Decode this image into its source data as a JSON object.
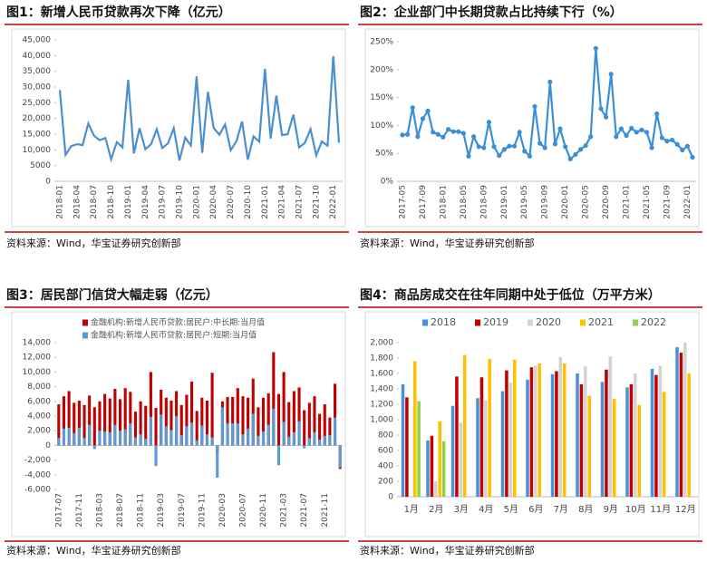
{
  "chart_data": [
    {
      "type": "line",
      "title": "图1：新增人民币贷款再次下降（亿元）",
      "source": "资料来源：Wind，华宝证券研究创新部",
      "color": "#4a90d0",
      "markers": false,
      "categories": [
        "2018-01",
        null,
        null,
        "2018-04",
        null,
        null,
        "2018-07",
        null,
        null,
        "2018-10",
        null,
        null,
        "2019-01",
        null,
        null,
        "2019-04",
        null,
        null,
        "2019-07",
        null,
        null,
        "2019-10",
        null,
        null,
        "2020-01",
        null,
        null,
        "2020-04",
        null,
        null,
        "2020-07",
        null,
        null,
        "2020-10",
        null,
        null,
        "2021-01",
        null,
        null,
        "2021-04",
        null,
        null,
        "2021-07",
        null,
        null,
        "2021-10",
        null,
        null,
        "2022-01",
        null
      ],
      "values": [
        29000,
        8400,
        11200,
        11800,
        11500,
        18400,
        14500,
        13100,
        13800,
        6970,
        12500,
        10800,
        32300,
        8860,
        16900,
        10200,
        11800,
        16600,
        10600,
        12100,
        16900,
        6613,
        13900,
        11400,
        33400,
        9057,
        28500,
        17000,
        14800,
        18100,
        9927,
        12800,
        19000,
        6898,
        14300,
        12600,
        35800,
        13600,
        27300,
        14700,
        15000,
        21200,
        10800,
        12200,
        16600,
        8262,
        12700,
        11300,
        39800,
        12300
      ],
      "ylim": [
        0,
        45000
      ],
      "yticks": [
        0,
        5000,
        {
          "value": 10000,
          "label": "10,000"
        },
        {
          "value": 15000,
          "label": "15,000"
        },
        {
          "value": 20000,
          "label": "20,000"
        },
        {
          "value": 25000,
          "label": "25,000"
        },
        {
          "value": 30000,
          "label": "30,000"
        },
        {
          "value": 35000,
          "label": "35,000"
        },
        {
          "value": 40000,
          "label": "40,000"
        },
        {
          "value": 45000,
          "label": "45,000"
        }
      ]
    },
    {
      "type": "line",
      "title": "图2：企业部门中长期贷款占比持续下行（%）",
      "source": "资料来源：Wind，华宝证券研究创新部",
      "color": "#3a8fd6",
      "markers": true,
      "categories": [
        "2017-05",
        null,
        null,
        null,
        "2017-09",
        null,
        null,
        null,
        "2018-01",
        null,
        null,
        null,
        "2018-05",
        null,
        null,
        null,
        "2018-09",
        null,
        null,
        null,
        "2019-01",
        null,
        null,
        null,
        "2019-05",
        null,
        null,
        null,
        "2019-09",
        null,
        null,
        null,
        "2020-01",
        null,
        null,
        null,
        "2020-05",
        null,
        null,
        null,
        "2020-09",
        null,
        null,
        null,
        "2021-01",
        null,
        null,
        null,
        "2021-05",
        null,
        null,
        null,
        "2021-09",
        null,
        null,
        null,
        "2022-01",
        null
      ],
      "values": [
        83,
        84,
        132,
        80,
        112,
        126,
        88,
        84,
        79,
        93,
        89,
        89,
        86,
        45,
        80,
        62,
        60,
        106,
        62,
        46,
        57,
        63,
        63,
        88,
        54,
        45,
        134,
        68,
        60,
        178,
        67,
        94,
        62,
        40,
        48,
        57,
        64,
        80,
        238,
        130,
        115,
        192,
        80,
        94,
        82,
        95,
        88,
        92,
        88,
        60,
        121,
        78,
        72,
        74,
        66,
        56,
        63,
        43
      ],
      "ylim": [
        0,
        250
      ],
      "yticks": [
        {
          "value": 0,
          "label": "0%"
        },
        {
          "value": 50,
          "label": "50%"
        },
        {
          "value": 100,
          "label": "100%"
        },
        {
          "value": 150,
          "label": "150%"
        },
        {
          "value": 200,
          "label": "200%"
        },
        {
          "value": 250,
          "label": "250%"
        }
      ]
    },
    {
      "type": "bar",
      "bar_mode": "overlap",
      "title": "图3：居民部门信贷大幅走弱（亿元）",
      "source": "资料来源：Wind，华宝证券研究创新部",
      "legend": "top-left",
      "categories": [
        "2017-07",
        null,
        null,
        null,
        "2017-11",
        null,
        null,
        null,
        "2018-03",
        null,
        null,
        null,
        "2018-07",
        null,
        null,
        null,
        "2018-11",
        null,
        null,
        null,
        "2019-03",
        null,
        null,
        null,
        "2019-07",
        null,
        null,
        null,
        "2019-11",
        null,
        null,
        null,
        "2020-03",
        null,
        null,
        null,
        "2020-07",
        null,
        null,
        null,
        "2020-11",
        null,
        null,
        null,
        "2021-03",
        null,
        null,
        null,
        "2021-07",
        null,
        null,
        null,
        "2021-11",
        null,
        null,
        null
      ],
      "series": [
        {
          "name": "金融机构:新增人民币贷款:居民户:中长期:当月值",
          "color": "#c00000",
          "values": [
            5600,
            6700,
            7400,
            5800,
            6100,
            5500,
            6800,
            5200,
            6000,
            7000,
            6400,
            7700,
            6300,
            7800,
            7300,
            4600,
            6000,
            5400,
            10000,
            5100,
            7600,
            6500,
            6100,
            7400,
            5500,
            6900,
            8700,
            4700,
            6500,
            6100,
            9900,
            -1000,
            6000,
            6600,
            6600,
            7800,
            6700,
            6500,
            9100,
            5200,
            6500,
            7100,
            12700,
            7000,
            10000,
            5900,
            7400,
            7900,
            4800,
            5800,
            6700,
            4300,
            5600,
            3800,
            8400,
            -3200
          ]
        },
        {
          "name": "金融机构:新增人民币贷款:居民户:短期:当月值",
          "color": "#5b9bd5",
          "values": [
            1000,
            2300,
            2400,
            1700,
            2400,
            1000,
            2800,
            -500,
            2000,
            1900,
            1800,
            2800,
            2000,
            2200,
            3000,
            1100,
            1500,
            900,
            3900,
            -2800,
            4200,
            2600,
            2100,
            4000,
            1400,
            2600,
            3100,
            700,
            2700,
            1500,
            1100,
            -4400,
            5200,
            3000,
            3000,
            3000,
            1500,
            2300,
            4300,
            1300,
            1900,
            2800,
            5000,
            -2700,
            3200,
            1200,
            1800,
            3300,
            -400,
            1000,
            1800,
            800,
            1300,
            1400,
            3800,
            -3000
          ]
        }
      ],
      "ylim": [
        -6000,
        14000
      ],
      "yticks": [
        {
          "value": -6000,
          "label": "-6,000"
        },
        {
          "value": -4000,
          "label": "-4,000"
        },
        {
          "value": -2000,
          "label": "-2,000"
        },
        0,
        {
          "value": 2000,
          "label": "2,000"
        },
        {
          "value": 4000,
          "label": "4,000"
        },
        {
          "value": 6000,
          "label": "6,000"
        },
        {
          "value": 8000,
          "label": "8,000"
        },
        {
          "value": 10000,
          "label": "10,000"
        },
        {
          "value": 12000,
          "label": "12,000"
        },
        {
          "value": 14000,
          "label": "14,000"
        }
      ]
    },
    {
      "type": "bar",
      "bar_mode": "grouped",
      "title": "图4：商品房成交在往年同期中处于低位（万平方米）",
      "source": "资料来源：Wind，华宝证券研究创新部",
      "legend": "top",
      "categories": [
        "1月",
        "2月",
        "3月",
        "4月",
        "5月",
        "6月",
        "7月",
        "8月",
        "9月",
        "10月",
        "11月",
        "12月"
      ],
      "series": [
        {
          "name": "2018",
          "color": "#4a90d9",
          "values": [
            1460,
            730,
            1180,
            1280,
            1370,
            1520,
            1590,
            1600,
            1490,
            1420,
            1660,
            1940
          ]
        },
        {
          "name": "2019",
          "color": "#c00000",
          "values": [
            1290,
            790,
            1560,
            1550,
            1640,
            1680,
            1630,
            1460,
            1650,
            1460,
            1580,
            1870
          ]
        },
        {
          "name": "2020",
          "color": "#d3d3d3",
          "values": [
            null,
            200,
            960,
            1250,
            1480,
            1700,
            1810,
            1690,
            1820,
            1600,
            1700,
            2000
          ]
        },
        {
          "name": "2021",
          "color": "#ffc000",
          "values": [
            1760,
            980,
            1840,
            1790,
            1780,
            1730,
            1730,
            1310,
            1270,
            1190,
            1360,
            1600
          ]
        },
        {
          "name": "2022",
          "color": "#92d050",
          "values": [
            1240,
            720,
            null,
            null,
            null,
            null,
            null,
            null,
            null,
            null,
            null,
            null
          ]
        }
      ],
      "ylim": [
        0,
        2000
      ],
      "yticks": [
        0,
        200,
        400,
        600,
        800,
        {
          "value": 1000,
          "label": "1,000"
        },
        {
          "value": 1200,
          "label": "1,200"
        },
        {
          "value": 1400,
          "label": "1,400"
        },
        {
          "value": 1600,
          "label": "1,600"
        },
        {
          "value": 1800,
          "label": "1,800"
        },
        {
          "value": 2000,
          "label": "2,000"
        }
      ]
    }
  ]
}
